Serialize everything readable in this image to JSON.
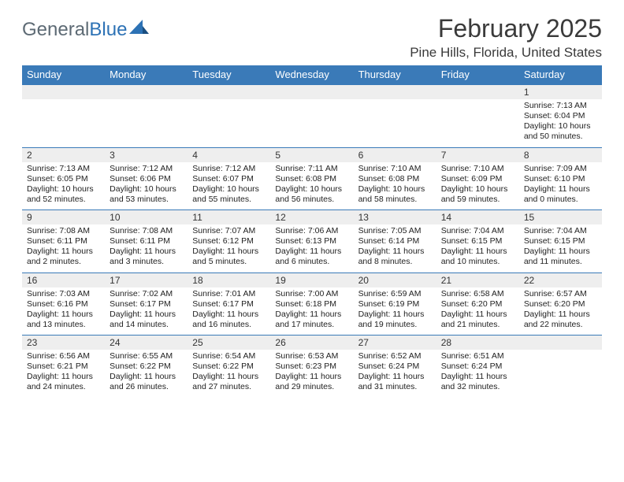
{
  "brand": {
    "word1": "General",
    "word2": "Blue"
  },
  "title": "February 2025",
  "location": "Pine Hills, Florida, United States",
  "colors": {
    "header_bar": "#3a7ab8",
    "daynum_bg": "#eeeeee",
    "text": "#333333",
    "brand_gray": "#5d6a74",
    "brand_blue": "#2d72b5"
  },
  "weekdays": [
    "Sunday",
    "Monday",
    "Tuesday",
    "Wednesday",
    "Thursday",
    "Friday",
    "Saturday"
  ],
  "weeks": [
    [
      {
        "n": "",
        "sr": "",
        "ss": "",
        "dl": ""
      },
      {
        "n": "",
        "sr": "",
        "ss": "",
        "dl": ""
      },
      {
        "n": "",
        "sr": "",
        "ss": "",
        "dl": ""
      },
      {
        "n": "",
        "sr": "",
        "ss": "",
        "dl": ""
      },
      {
        "n": "",
        "sr": "",
        "ss": "",
        "dl": ""
      },
      {
        "n": "",
        "sr": "",
        "ss": "",
        "dl": ""
      },
      {
        "n": "1",
        "sr": "Sunrise: 7:13 AM",
        "ss": "Sunset: 6:04 PM",
        "dl": "Daylight: 10 hours and 50 minutes."
      }
    ],
    [
      {
        "n": "2",
        "sr": "Sunrise: 7:13 AM",
        "ss": "Sunset: 6:05 PM",
        "dl": "Daylight: 10 hours and 52 minutes."
      },
      {
        "n": "3",
        "sr": "Sunrise: 7:12 AM",
        "ss": "Sunset: 6:06 PM",
        "dl": "Daylight: 10 hours and 53 minutes."
      },
      {
        "n": "4",
        "sr": "Sunrise: 7:12 AM",
        "ss": "Sunset: 6:07 PM",
        "dl": "Daylight: 10 hours and 55 minutes."
      },
      {
        "n": "5",
        "sr": "Sunrise: 7:11 AM",
        "ss": "Sunset: 6:08 PM",
        "dl": "Daylight: 10 hours and 56 minutes."
      },
      {
        "n": "6",
        "sr": "Sunrise: 7:10 AM",
        "ss": "Sunset: 6:08 PM",
        "dl": "Daylight: 10 hours and 58 minutes."
      },
      {
        "n": "7",
        "sr": "Sunrise: 7:10 AM",
        "ss": "Sunset: 6:09 PM",
        "dl": "Daylight: 10 hours and 59 minutes."
      },
      {
        "n": "8",
        "sr": "Sunrise: 7:09 AM",
        "ss": "Sunset: 6:10 PM",
        "dl": "Daylight: 11 hours and 0 minutes."
      }
    ],
    [
      {
        "n": "9",
        "sr": "Sunrise: 7:08 AM",
        "ss": "Sunset: 6:11 PM",
        "dl": "Daylight: 11 hours and 2 minutes."
      },
      {
        "n": "10",
        "sr": "Sunrise: 7:08 AM",
        "ss": "Sunset: 6:11 PM",
        "dl": "Daylight: 11 hours and 3 minutes."
      },
      {
        "n": "11",
        "sr": "Sunrise: 7:07 AM",
        "ss": "Sunset: 6:12 PM",
        "dl": "Daylight: 11 hours and 5 minutes."
      },
      {
        "n": "12",
        "sr": "Sunrise: 7:06 AM",
        "ss": "Sunset: 6:13 PM",
        "dl": "Daylight: 11 hours and 6 minutes."
      },
      {
        "n": "13",
        "sr": "Sunrise: 7:05 AM",
        "ss": "Sunset: 6:14 PM",
        "dl": "Daylight: 11 hours and 8 minutes."
      },
      {
        "n": "14",
        "sr": "Sunrise: 7:04 AM",
        "ss": "Sunset: 6:15 PM",
        "dl": "Daylight: 11 hours and 10 minutes."
      },
      {
        "n": "15",
        "sr": "Sunrise: 7:04 AM",
        "ss": "Sunset: 6:15 PM",
        "dl": "Daylight: 11 hours and 11 minutes."
      }
    ],
    [
      {
        "n": "16",
        "sr": "Sunrise: 7:03 AM",
        "ss": "Sunset: 6:16 PM",
        "dl": "Daylight: 11 hours and 13 minutes."
      },
      {
        "n": "17",
        "sr": "Sunrise: 7:02 AM",
        "ss": "Sunset: 6:17 PM",
        "dl": "Daylight: 11 hours and 14 minutes."
      },
      {
        "n": "18",
        "sr": "Sunrise: 7:01 AM",
        "ss": "Sunset: 6:17 PM",
        "dl": "Daylight: 11 hours and 16 minutes."
      },
      {
        "n": "19",
        "sr": "Sunrise: 7:00 AM",
        "ss": "Sunset: 6:18 PM",
        "dl": "Daylight: 11 hours and 17 minutes."
      },
      {
        "n": "20",
        "sr": "Sunrise: 6:59 AM",
        "ss": "Sunset: 6:19 PM",
        "dl": "Daylight: 11 hours and 19 minutes."
      },
      {
        "n": "21",
        "sr": "Sunrise: 6:58 AM",
        "ss": "Sunset: 6:20 PM",
        "dl": "Daylight: 11 hours and 21 minutes."
      },
      {
        "n": "22",
        "sr": "Sunrise: 6:57 AM",
        "ss": "Sunset: 6:20 PM",
        "dl": "Daylight: 11 hours and 22 minutes."
      }
    ],
    [
      {
        "n": "23",
        "sr": "Sunrise: 6:56 AM",
        "ss": "Sunset: 6:21 PM",
        "dl": "Daylight: 11 hours and 24 minutes."
      },
      {
        "n": "24",
        "sr": "Sunrise: 6:55 AM",
        "ss": "Sunset: 6:22 PM",
        "dl": "Daylight: 11 hours and 26 minutes."
      },
      {
        "n": "25",
        "sr": "Sunrise: 6:54 AM",
        "ss": "Sunset: 6:22 PM",
        "dl": "Daylight: 11 hours and 27 minutes."
      },
      {
        "n": "26",
        "sr": "Sunrise: 6:53 AM",
        "ss": "Sunset: 6:23 PM",
        "dl": "Daylight: 11 hours and 29 minutes."
      },
      {
        "n": "27",
        "sr": "Sunrise: 6:52 AM",
        "ss": "Sunset: 6:24 PM",
        "dl": "Daylight: 11 hours and 31 minutes."
      },
      {
        "n": "28",
        "sr": "Sunrise: 6:51 AM",
        "ss": "Sunset: 6:24 PM",
        "dl": "Daylight: 11 hours and 32 minutes."
      },
      {
        "n": "",
        "sr": "",
        "ss": "",
        "dl": ""
      }
    ]
  ]
}
